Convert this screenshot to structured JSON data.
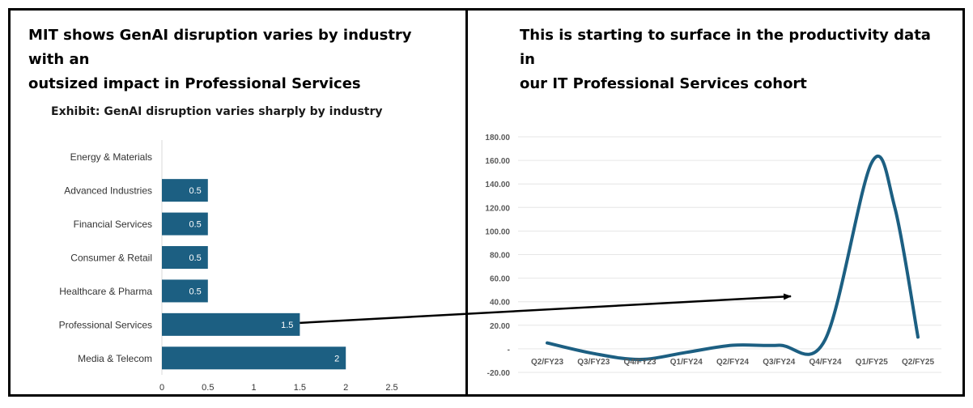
{
  "left_panel": {
    "title_line1": "MIT shows GenAI disruption varies by industry with an",
    "title_line2": "outsized impact in Professional Services",
    "exhibit_title": "Exhibit: GenAI disruption varies sharply by industry"
  },
  "right_panel": {
    "title_line1": "This is starting to surface in the productivity data in",
    "title_line2": "our IT Professional Services cohort"
  },
  "chart_data": [
    {
      "type": "bar",
      "orientation": "horizontal",
      "title": "Exhibit: GenAI disruption varies sharply by industry",
      "categories": [
        "Energy & Materials",
        "Advanced Industries",
        "Financial Services",
        "Consumer & Retail",
        "Healthcare & Pharma",
        "Professional Services",
        "Media & Telecom"
      ],
      "values": [
        0,
        0.5,
        0.5,
        0.5,
        0.5,
        1.5,
        2
      ],
      "data_labels": [
        "",
        "0.5",
        "0.5",
        "0.5",
        "0.5",
        "1.5",
        "2"
      ],
      "xlim": [
        0,
        2.5
      ],
      "x_ticks": [
        "0",
        "0.5",
        "1",
        "1.5",
        "2",
        "2.5"
      ],
      "x_tick_values": [
        0,
        0.5,
        1,
        1.5,
        2,
        2.5
      ],
      "bar_color": "#1c5f82",
      "grid": false
    },
    {
      "type": "line",
      "categories": [
        "Q2/FY23",
        "Q3/FY23",
        "Q4/FY23",
        "Q1/FY24",
        "Q2/FY24",
        "Q3/FY24",
        "Q4/FY24",
        "Q1/FY25",
        "Q2/FY25"
      ],
      "points": [
        {
          "x": 0,
          "y": 5
        },
        {
          "x": 1,
          "y": -4
        },
        {
          "x": 2,
          "y": -9
        },
        {
          "x": 3,
          "y": -3
        },
        {
          "x": 4,
          "y": 3
        },
        {
          "x": 5,
          "y": 3
        },
        {
          "x": 6,
          "y": 8
        },
        {
          "x": 7,
          "y": 158
        },
        {
          "x": 7.5,
          "y": 120
        },
        {
          "x": 8,
          "y": 10
        }
      ],
      "ylim": [
        -20,
        180
      ],
      "y_ticks": [
        "-20.00",
        "-",
        "20.00",
        "40.00",
        "60.00",
        "80.00",
        "100.00",
        "120.00",
        "140.00",
        "160.00",
        "180.00"
      ],
      "y_tick_values": [
        -20,
        0,
        20,
        40,
        60,
        80,
        100,
        120,
        140,
        160,
        180
      ],
      "line_color": "#1c5f82",
      "grid": true
    }
  ],
  "connector": {
    "from": "Professional Services bar",
    "to": "Q4/FY24 productivity rise",
    "color": "#000000"
  }
}
